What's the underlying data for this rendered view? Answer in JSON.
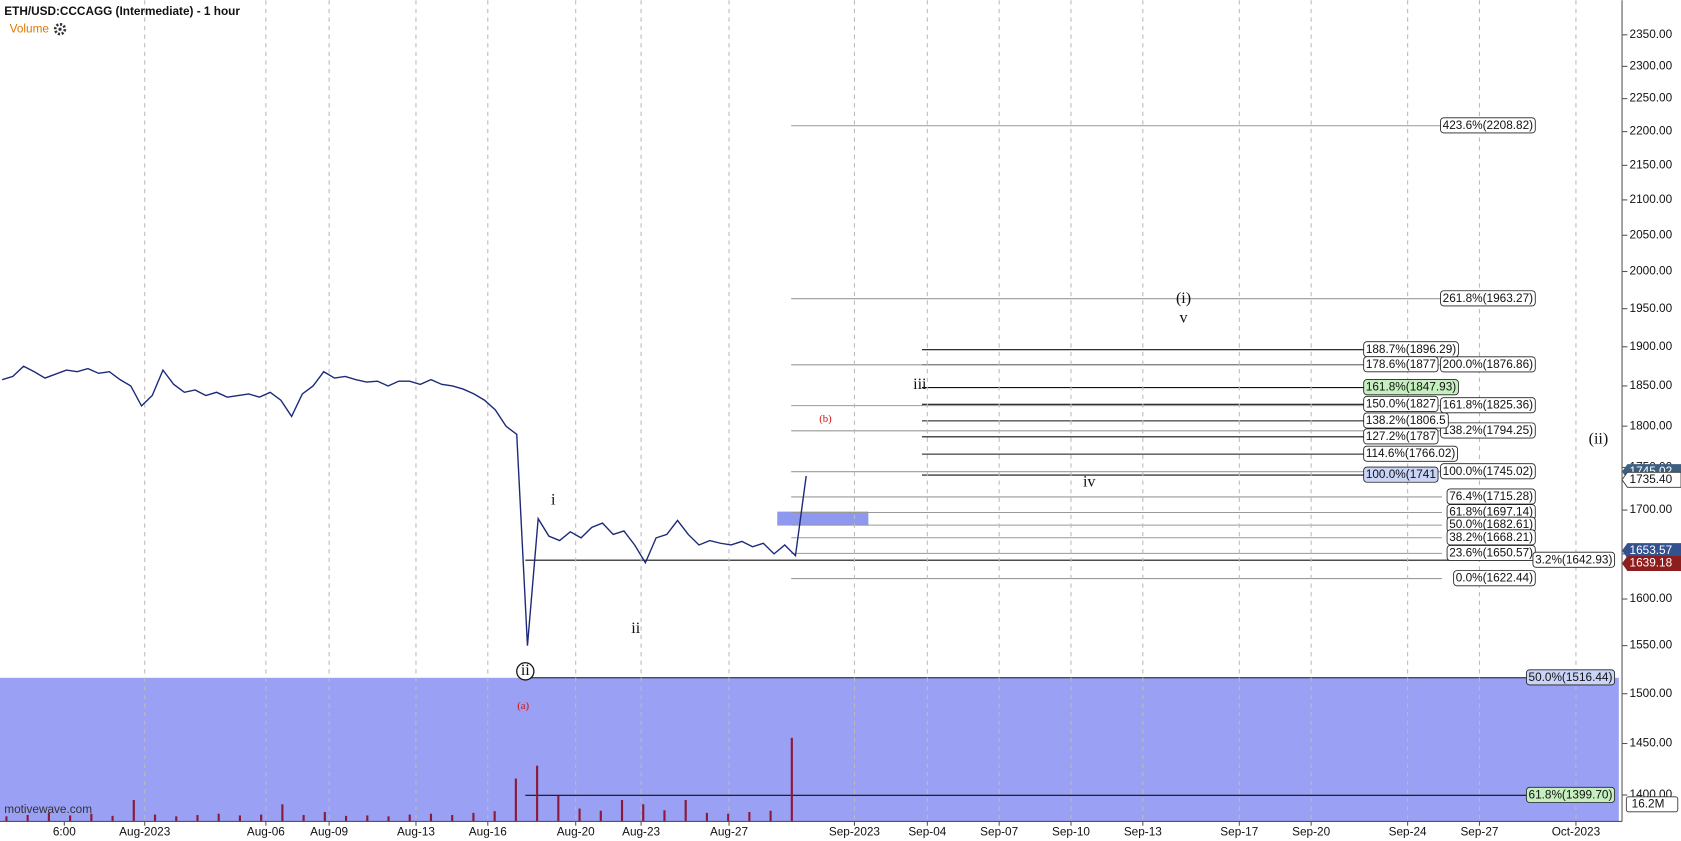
{
  "chart_data": {
    "type": "line",
    "title": "ETH/USD:CCCAGG (Intermediate) - 1 hour",
    "indicator_label": "Volume",
    "watermark": "motivewave.com",
    "log_scale": true,
    "ylim": [
      1375,
      2406
    ],
    "yticks": [
      {
        "value": 1400,
        "label": "1400.00"
      },
      {
        "value": 1450,
        "label": "1450.00"
      },
      {
        "value": 1500,
        "label": "1500.00"
      },
      {
        "value": 1550,
        "label": "1550.00"
      },
      {
        "value": 1600,
        "label": "1600.00"
      },
      {
        "value": 1650,
        "label": "1650.00"
      },
      {
        "value": 1700,
        "label": "1700.00"
      },
      {
        "value": 1750,
        "label": "1750.00"
      },
      {
        "value": 1800,
        "label": "1800.00"
      },
      {
        "value": 1850,
        "label": "1850.00"
      },
      {
        "value": 1900,
        "label": "1900.00"
      },
      {
        "value": 1950,
        "label": "1950.00"
      },
      {
        "value": 2000,
        "label": "2000.00"
      },
      {
        "value": 2050,
        "label": "2050.00"
      },
      {
        "value": 2100,
        "label": "2100.00"
      },
      {
        "value": 2150,
        "label": "2150.00"
      },
      {
        "value": 2200,
        "label": "2200.00"
      },
      {
        "value": 2250,
        "label": "2250.00"
      },
      {
        "value": 2300,
        "label": "2300.00"
      },
      {
        "value": 2350,
        "label": "2350.00"
      }
    ],
    "x_labels": [
      "6:00",
      "Aug-2023",
      "Aug-06",
      "Aug-09",
      "Aug-13",
      "Aug-16",
      "Aug-20",
      "Aug-23",
      "Aug-27",
      "Sep-2023",
      "Sep-04",
      "Sep-07",
      "Sep-10",
      "Sep-13",
      "Sep-17",
      "Sep-20",
      "Sep-24",
      "Sep-27",
      "Oct-2023"
    ],
    "color": "#1c2a78",
    "values": [
      1858,
      1862,
      1875,
      1868,
      1860,
      1865,
      1870,
      1868,
      1872,
      1866,
      1868,
      1858,
      1850,
      1825,
      1838,
      1870,
      1852,
      1842,
      1845,
      1838,
      1842,
      1836,
      1838,
      1840,
      1836,
      1842,
      1832,
      1812,
      1840,
      1850,
      1868,
      1860,
      1862,
      1858,
      1855,
      1856,
      1850,
      1856,
      1856,
      1852,
      1858,
      1852,
      1850,
      1846,
      1840,
      1832,
      1820,
      1800,
      1790,
      1550,
      1690,
      1670,
      1665,
      1675,
      1668,
      1680,
      1685,
      1672,
      1676,
      1660,
      1640,
      1668,
      1672,
      1688,
      1672,
      1660,
      1665,
      1662,
      1660,
      1664,
      1658,
      1662,
      1650,
      1660,
      1648,
      1740
    ],
    "volume": {
      "color": "#8b1a3a",
      "values": [
        1.2,
        1.5,
        2,
        1.4,
        1.8,
        1.3,
        5,
        1.6,
        1.2,
        1.5,
        1.8,
        1.4,
        1.6,
        4,
        1.5,
        2.2,
        1.3,
        1.4,
        1.2,
        1.6,
        1.8,
        1.5,
        2,
        2.4,
        10,
        13,
        6,
        3,
        2.5,
        5,
        4,
        2.6,
        5,
        2,
        1.8,
        2.2,
        2.5,
        19.5
      ]
    },
    "volume_tag": {
      "value": 16.2,
      "label": "16.2M"
    },
    "fib_levels": [
      {
        "label": "423.6%(2208.82)",
        "price": 2208.82,
        "group": 1
      },
      {
        "label": "261.8%(1963.27)",
        "price": 1963.27,
        "group": 1
      },
      {
        "label": "200.0%(1876.86)",
        "price": 1876.86,
        "group": 1
      },
      {
        "label": "161.8%(1825.36)",
        "price": 1825.36,
        "group": 1
      },
      {
        "label": "138.2%(1794.25)",
        "price": 1794.25,
        "group": 1
      },
      {
        "label": "100.0%(1745.02)",
        "price": 1745.02,
        "group": 1
      },
      {
        "label": "76.4%(1715.28)",
        "price": 1715.28,
        "group": 1
      },
      {
        "label": "61.8%(1697.14)",
        "price": 1697.14,
        "group": 1
      },
      {
        "label": "50.0%(1682.61)",
        "price": 1682.61,
        "group": 1
      },
      {
        "label": "38.2%(1668.21)",
        "price": 1668.21,
        "group": 1
      },
      {
        "label": "23.6%(1650.57)",
        "price": 1650.57,
        "group": 1
      },
      {
        "label": "0.0%(1622.44)",
        "price": 1622.44,
        "group": 1
      },
      {
        "label": "188.7%(1896.29)",
        "price": 1896.29,
        "group": 2
      },
      {
        "label": "178.6%(1877",
        "price": 1877,
        "group": 2
      },
      {
        "label": "161.8%(1847.93)",
        "price": 1847.93,
        "group": 2,
        "color": "#c6efc0"
      },
      {
        "label": "150.0%(1827",
        "price": 1827,
        "group": 2
      },
      {
        "label": "138.2%(1806.5",
        "price": 1806.5,
        "group": 2
      },
      {
        "label": "127.2%(1787",
        "price": 1787,
        "group": 2
      },
      {
        "label": "114.6%(1766.02)",
        "price": 1766.02,
        "group": 2
      },
      {
        "label": "100.0%(1741",
        "price": 1741,
        "group": 2,
        "color": "#c9d4f7"
      },
      {
        "label": "3.2%(1642.93)",
        "price": 1642.93,
        "group": 3
      },
      {
        "label": "50.0%(1516.44)",
        "price": 1516.44,
        "group": 3,
        "color": "#c9d4f7"
      },
      {
        "label": "61.8%(1399.70)",
        "price": 1399.7,
        "group": 3,
        "color": "#c6efc0"
      }
    ],
    "price_tags": [
      {
        "value": 1745.02,
        "label": "1745.02",
        "color": "#3d5f80"
      },
      {
        "value": 1735.4,
        "label": "1735.40",
        "color": "#ffffff"
      },
      {
        "value": 1653.57,
        "label": "1653.57",
        "color": "#33508f"
      },
      {
        "value": 1639.18,
        "label": "1639.18",
        "color": "#8e1d1d"
      }
    ],
    "wave_labels": [
      "(i)",
      "v",
      "iii",
      "iv",
      "i",
      "ii",
      "ii",
      "(ii)",
      "(a)",
      "(b)"
    ]
  }
}
